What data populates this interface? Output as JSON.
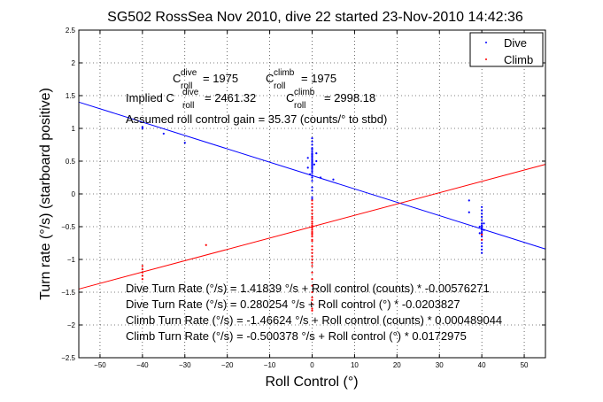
{
  "chart_data": {
    "type": "scatter",
    "title": "SG502 RossSea Nov 2010, dive 22 started 23-Nov-2010 14:42:36",
    "xlabel": "Roll Control (°)",
    "ylabel": "Turn rate (°/s) (starboard positive)",
    "xlim": [
      -55,
      55
    ],
    "ylim": [
      -2.5,
      2.5
    ],
    "xticks": [
      -50,
      -40,
      -30,
      -20,
      -10,
      0,
      10,
      20,
      30,
      40,
      50
    ],
    "yticks": [
      -2.5,
      -2,
      -1.5,
      -1,
      -0.5,
      0,
      0.5,
      1,
      1.5,
      2,
      2.5
    ],
    "grid": true,
    "legend_position": "top-right",
    "series": [
      {
        "name": "Dive",
        "color": "#0000ff",
        "points": [
          [
            -40,
            1.02
          ],
          [
            -40,
            1.0
          ],
          [
            -30,
            0.78
          ],
          [
            -35,
            0.92
          ],
          [
            0,
            0.85
          ],
          [
            0,
            0.8
          ],
          [
            0,
            0.75
          ],
          [
            0,
            0.7
          ],
          [
            0,
            0.68
          ],
          [
            0,
            0.65
          ],
          [
            0,
            0.62
          ],
          [
            0,
            0.6
          ],
          [
            0,
            0.58
          ],
          [
            0,
            0.56
          ],
          [
            0,
            0.54
          ],
          [
            0,
            0.52
          ],
          [
            0,
            0.5
          ],
          [
            0,
            0.48
          ],
          [
            0,
            0.46
          ],
          [
            0,
            0.44
          ],
          [
            0,
            0.42
          ],
          [
            0,
            0.4
          ],
          [
            0,
            0.38
          ],
          [
            0,
            0.35
          ],
          [
            0,
            0.32
          ],
          [
            0,
            0.28
          ],
          [
            0,
            0.25
          ],
          [
            0,
            0.2
          ],
          [
            -1,
            0.55
          ],
          [
            1,
            0.5
          ],
          [
            -1,
            0.4
          ],
          [
            1,
            0.62
          ],
          [
            -0.5,
            0.3
          ],
          [
            0.5,
            0.45
          ],
          [
            0,
            0.1
          ],
          [
            0,
            0.05
          ],
          [
            0,
            -0.05
          ],
          [
            0,
            -0.08
          ],
          [
            2,
            0.25
          ],
          [
            5,
            0.22
          ],
          [
            37,
            -0.1
          ],
          [
            37,
            -0.28
          ],
          [
            40,
            -0.2
          ],
          [
            40,
            -0.25
          ],
          [
            40,
            -0.3
          ],
          [
            40,
            -0.35
          ],
          [
            40,
            -0.4
          ],
          [
            40,
            -0.45
          ],
          [
            40,
            -0.48
          ],
          [
            40,
            -0.5
          ],
          [
            40,
            -0.52
          ],
          [
            40,
            -0.55
          ],
          [
            40,
            -0.58
          ],
          [
            40,
            -0.6
          ],
          [
            40,
            -0.62
          ],
          [
            40,
            -0.65
          ],
          [
            40,
            -0.7
          ],
          [
            40,
            -0.75
          ],
          [
            40,
            -0.8
          ],
          [
            40,
            -0.85
          ],
          [
            40,
            -0.9
          ],
          [
            39.5,
            -0.5
          ],
          [
            40.5,
            -0.55
          ],
          [
            39.5,
            -0.6
          ],
          [
            40.5,
            -0.45
          ]
        ]
      },
      {
        "name": "Climb",
        "color": "#ff0000",
        "points": [
          [
            -40,
            -1.1
          ],
          [
            -40,
            -1.15
          ],
          [
            -40,
            -1.2
          ],
          [
            -40,
            -1.25
          ],
          [
            -40,
            -1.3
          ],
          [
            -25,
            -0.78
          ],
          [
            0,
            -0.38
          ],
          [
            0,
            -0.42
          ],
          [
            0,
            -0.45
          ],
          [
            0,
            -0.48
          ],
          [
            0,
            -0.5
          ],
          [
            0,
            -0.52
          ],
          [
            0,
            -0.55
          ],
          [
            0,
            -0.58
          ],
          [
            0,
            -0.6
          ],
          [
            0,
            -0.62
          ],
          [
            0,
            -0.65
          ],
          [
            0,
            -0.7
          ],
          [
            0,
            -0.72
          ],
          [
            0,
            -0.25
          ],
          [
            0,
            -0.8
          ],
          [
            0,
            -0.85
          ],
          [
            0,
            -0.9
          ],
          [
            0,
            -0.95
          ],
          [
            0,
            -1.0
          ],
          [
            0,
            -1.05
          ],
          [
            0,
            -1.1
          ],
          [
            0,
            -1.2
          ],
          [
            0,
            -1.3
          ],
          [
            0,
            -1.4
          ],
          [
            0,
            -1.5
          ],
          [
            0,
            -1.58
          ],
          [
            0,
            -1.62
          ],
          [
            0,
            -1.68
          ],
          [
            0,
            -1.75
          ],
          [
            0,
            -1.78
          ],
          [
            0,
            -0.2
          ],
          [
            0,
            -0.1
          ],
          [
            0,
            -0.15
          ],
          [
            0,
            -0.3
          ],
          [
            0,
            -0.35
          ],
          [
            40,
            -0.62
          ],
          [
            40,
            -0.7
          ]
        ]
      }
    ],
    "fit_lines": [
      {
        "name": "Dive fit",
        "color": "#0000ff",
        "intercept": 0.280254,
        "slope": -0.0203827
      },
      {
        "name": "Climb fit",
        "color": "#ff0000",
        "intercept": -0.500378,
        "slope": 0.0172975
      }
    ],
    "annotations": {
      "c_dive": "= 1975",
      "c_climb": "= 1975",
      "implied_prefix": "Implied C",
      "implied_dive_value": "= 2461.32",
      "implied_climb_value": "= 2998.18",
      "c_symbol": "C",
      "sub_roll": "roll",
      "sup_dive": "dive",
      "sup_climb": "climb",
      "gain": "Assumed roll control gain = 35.37 (counts/° to stbd)",
      "eq1": "Dive Turn Rate (°/s) = 1.41839 °/s + Roll control (counts) * -0.00576271",
      "eq2": "Dive Turn Rate (°/s) = 0.280254 °/s + Roll control (°) * -0.0203827",
      "eq3": "Climb Turn Rate (°/s) = -1.46624 °/s + Roll control (counts) * 0.000489044",
      "eq4": "Climb Turn Rate (°/s) = -0.500378 °/s + Roll control (°) * 0.0172975"
    }
  }
}
